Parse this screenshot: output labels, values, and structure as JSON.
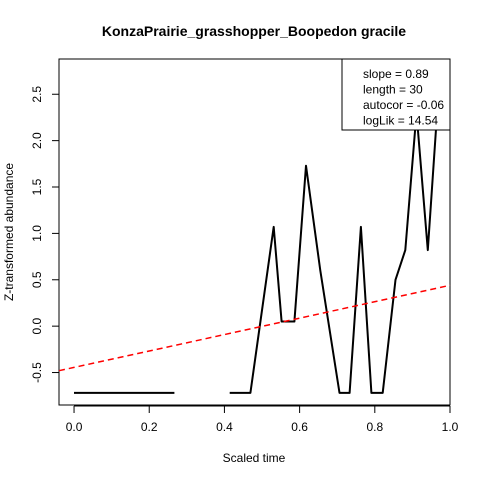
{
  "chart_data": {
    "type": "line",
    "title": "KonzaPrairie_grasshopper_Boopedon gracile",
    "xlabel": "Scaled time",
    "ylabel": "Z-transformed abundance",
    "xlim": [
      -0.04,
      1.0
    ],
    "ylim": [
      -0.85,
      2.88
    ],
    "xticks": [
      0.0,
      0.2,
      0.4,
      0.6,
      0.8,
      1.0
    ],
    "xtick_labels": [
      "0.0",
      "0.2",
      "0.4",
      "0.6",
      "0.8",
      "1.0"
    ],
    "yticks": [
      -0.5,
      0.0,
      0.5,
      1.0,
      1.5,
      2.0,
      2.5
    ],
    "ytick_labels": [
      "-0.5",
      "0.0",
      "0.5",
      "1.0",
      "1.5",
      "2.0",
      "2.5"
    ],
    "grid": false,
    "legend_position": "top-right",
    "legend_entries": [
      "slope = 0.89",
      "length = 30",
      "autocor = -0.06",
      "logLik = 14.54"
    ],
    "series": [
      {
        "color": "#000000",
        "style": "solid",
        "points": [
          [
            0.0,
            -0.72
          ],
          [
            0.034,
            -0.72
          ],
          [
            0.069,
            -0.72
          ],
          [
            0.103,
            -0.72
          ],
          [
            0.138,
            -0.72
          ],
          [
            0.172,
            -0.72
          ],
          [
            0.207,
            -0.72
          ],
          [
            0.241,
            -0.72
          ],
          [
            0.267,
            -0.72
          ],
          [
            null,
            null
          ],
          [
            0.414,
            -0.72
          ],
          [
            0.448,
            -0.72
          ],
          [
            0.469,
            -0.72
          ],
          [
            0.531,
            1.07
          ],
          [
            0.552,
            0.05
          ],
          [
            0.586,
            0.05
          ],
          [
            0.617,
            1.73
          ],
          [
            0.655,
            0.6
          ],
          [
            0.706,
            -0.72
          ],
          [
            0.733,
            -0.72
          ],
          [
            0.763,
            1.07
          ],
          [
            0.791,
            -0.72
          ],
          [
            0.821,
            -0.72
          ],
          [
            0.855,
            0.5
          ],
          [
            0.881,
            0.82
          ],
          [
            0.911,
            2.3
          ],
          [
            0.941,
            0.82
          ],
          [
            0.965,
            2.25
          ]
        ]
      },
      {
        "color": "#ff0000",
        "style": "dashed",
        "points": [
          [
            -0.04,
            -0.48
          ],
          [
            1.0,
            0.44
          ]
        ]
      }
    ]
  }
}
